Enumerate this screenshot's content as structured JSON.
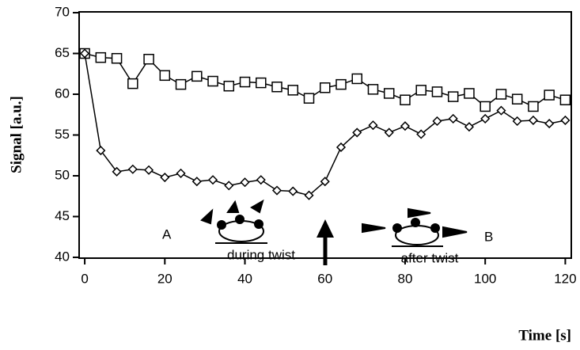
{
  "chart_data": {
    "type": "line",
    "x_label": "Time [s]",
    "y_label": "Signal [a.u.]",
    "x": [
      0,
      4,
      8,
      12,
      16,
      20,
      24,
      28,
      32,
      36,
      40,
      44,
      48,
      52,
      56,
      60,
      64,
      68,
      72,
      76,
      80,
      84,
      88,
      92,
      96,
      100,
      104,
      108,
      112,
      116,
      120
    ],
    "series": [
      {
        "marker": "square",
        "color": "#000000",
        "values": [
          65,
          64.5,
          64.4,
          61.3,
          64.3,
          62.3,
          61.2,
          62.2,
          61.6,
          61,
          61.5,
          61.4,
          60.9,
          60.5,
          59.5,
          60.8,
          61.2,
          61.9,
          60.6,
          60.1,
          59.3,
          60.5,
          60.3,
          59.7,
          60.1,
          58.5,
          60,
          59.4,
          58.5,
          59.9,
          59.3
        ]
      },
      {
        "marker": "diamond",
        "color": "#000000",
        "values": [
          65,
          53.1,
          50.5,
          50.8,
          50.7,
          49.8,
          50.3,
          49.3,
          49.5,
          48.8,
          49.2,
          49.5,
          48.2,
          48.1,
          47.6,
          49.3,
          53.5,
          55.3,
          56.2,
          55.3,
          56.1,
          55.1,
          56.7,
          57,
          56,
          57,
          58,
          56.7,
          56.8,
          56.4,
          56.8
        ]
      }
    ],
    "xlim": [
      -1.4,
      121.5
    ],
    "xticks": [
      0,
      20,
      40,
      60,
      80,
      100,
      120
    ],
    "ylim": [
      39.9,
      70.1
    ],
    "yticks": [
      40,
      45,
      50,
      55,
      60,
      65,
      70
    ],
    "annotations": [
      "A",
      "B",
      "during twist",
      "after twist"
    ]
  }
}
